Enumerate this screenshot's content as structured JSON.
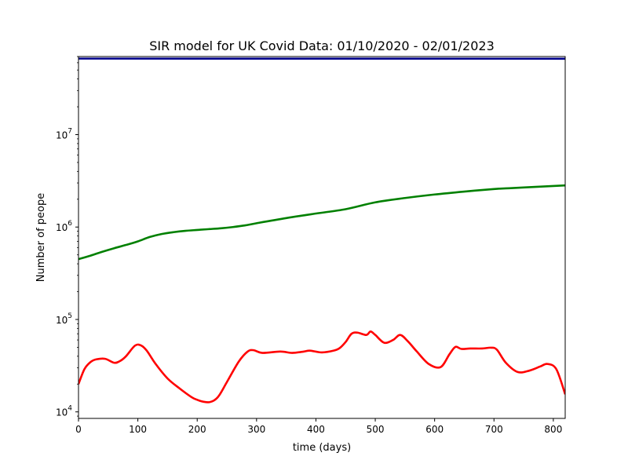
{
  "chart_data": {
    "type": "line",
    "title": "SIR model for UK Covid Data: 01/10/2020 - 02/01/2023",
    "xlabel": "time (days)",
    "ylabel": "Number of peope",
    "xlim": [
      0,
      820
    ],
    "ylim": [
      8500,
      70000000
    ],
    "yscale": "log",
    "grid": false,
    "x_ticks": [
      0,
      100,
      200,
      300,
      400,
      500,
      600,
      700,
      800
    ],
    "x_tick_labels": [
      "0",
      "100",
      "200",
      "300",
      "400",
      "500",
      "600",
      "700",
      "800"
    ],
    "y_ticks": [
      10000,
      100000,
      1000000,
      10000000
    ],
    "y_tick_labels": [
      {
        "base": "10",
        "exp": "4"
      },
      {
        "base": "10",
        "exp": "5"
      },
      {
        "base": "10",
        "exp": "6"
      },
      {
        "base": "10",
        "exp": "7"
      }
    ],
    "series": [
      {
        "color": "#00008b",
        "x": [
          0,
          820
        ],
        "y": [
          66500000,
          66300000
        ]
      },
      {
        "color": "#008000",
        "x": [
          0,
          20,
          40,
          60,
          80,
          100,
          120,
          140,
          160,
          180,
          200,
          220,
          240,
          260,
          280,
          300,
          350,
          400,
          450,
          500,
          550,
          600,
          650,
          700,
          720,
          750,
          820
        ],
        "y": [
          450000,
          490000,
          540000,
          590000,
          640000,
          700000,
          780000,
          840000,
          880000,
          910000,
          930000,
          950000,
          970000,
          1000000,
          1040000,
          1100000,
          1250000,
          1400000,
          1560000,
          1850000,
          2060000,
          2250000,
          2420000,
          2580000,
          2620000,
          2680000,
          2820000
        ]
      },
      {
        "color": "#ff0000",
        "x": [
          0,
          10,
          20,
          30,
          45,
          60,
          70,
          80,
          95,
          105,
          115,
          130,
          150,
          170,
          190,
          200,
          210,
          222,
          235,
          250,
          270,
          285,
          295,
          310,
          340,
          360,
          380,
          390,
          410,
          430,
          440,
          450,
          460,
          470,
          485,
          492,
          500,
          515,
          530,
          542,
          555,
          570,
          590,
          610,
          625,
          635,
          645,
          660,
          680,
          695,
          705,
          720,
          740,
          760,
          778,
          790,
          805,
          820
        ],
        "y": [
          20000,
          29000,
          34500,
          37000,
          37500,
          34000,
          35500,
          40000,
          52000,
          52500,
          46000,
          33000,
          23000,
          18000,
          14500,
          13500,
          12900,
          12800,
          14500,
          21000,
          35000,
          45000,
          46500,
          43500,
          45000,
          43500,
          45000,
          46000,
          44000,
          46000,
          49000,
          57000,
          70000,
          72000,
          68000,
          74000,
          68000,
          56000,
          60000,
          68000,
          58000,
          45000,
          33000,
          30500,
          42000,
          50500,
          48000,
          48500,
          48500,
          49500,
          47000,
          34000,
          27000,
          28000,
          31000,
          33000,
          29000,
          15500
        ]
      }
    ]
  }
}
